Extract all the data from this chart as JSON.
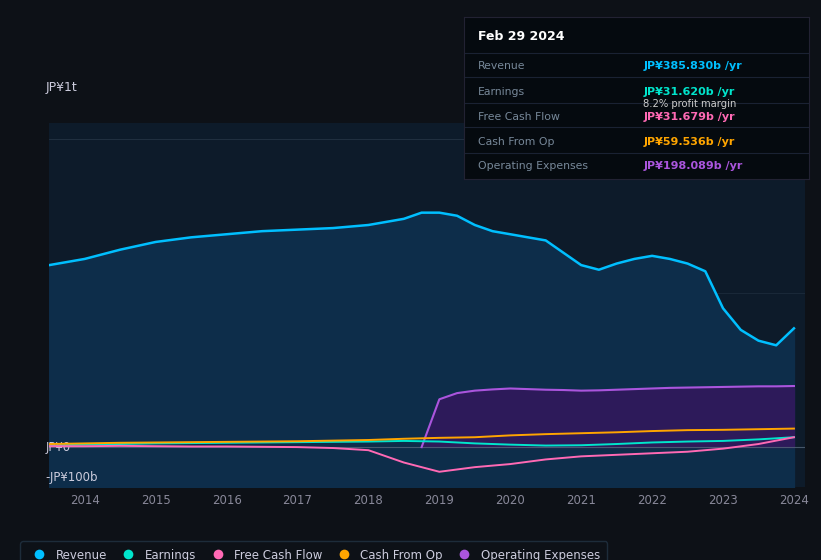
{
  "background_color": "#0d1117",
  "plot_bg_color": "#0d1b2a",
  "ylabel_top": "JP¥1t",
  "ylabel_zero": "JP¥0",
  "ylabel_neg": "-JP¥100b",
  "x_ticks": [
    2014,
    2015,
    2016,
    2017,
    2018,
    2019,
    2020,
    2021,
    2022,
    2023,
    2024
  ],
  "ylim": [
    -130,
    1050
  ],
  "colors": {
    "revenue": "#00bfff",
    "earnings": "#00e5cc",
    "free_cash_flow": "#ff69b4",
    "cash_from_op": "#ffa500",
    "operating_expenses": "#aa55dd",
    "revenue_fill": "#0d2d4a",
    "operating_expenses_fill": "#2d1a5a"
  },
  "info_box": {
    "date": "Feb 29 2024",
    "revenue_label": "Revenue",
    "revenue_value": "JP¥385.830b /yr",
    "earnings_label": "Earnings",
    "earnings_value": "JP¥31.620b /yr",
    "profit_margin": "8.2% profit margin",
    "fcf_label": "Free Cash Flow",
    "fcf_value": "JP¥31.679b /yr",
    "cfop_label": "Cash From Op",
    "cfop_value": "JP¥59.536b /yr",
    "opex_label": "Operating Expenses",
    "opex_value": "JP¥198.089b /yr"
  },
  "legend": [
    {
      "label": "Revenue",
      "color": "#00bfff"
    },
    {
      "label": "Earnings",
      "color": "#00e5cc"
    },
    {
      "label": "Free Cash Flow",
      "color": "#ff69b4"
    },
    {
      "label": "Cash From Op",
      "color": "#ffa500"
    },
    {
      "label": "Operating Expenses",
      "color": "#aa55dd"
    }
  ],
  "revenue": [
    [
      2013.5,
      590
    ],
    [
      2014.0,
      610
    ],
    [
      2014.5,
      640
    ],
    [
      2015.0,
      665
    ],
    [
      2015.5,
      680
    ],
    [
      2016.0,
      690
    ],
    [
      2016.5,
      700
    ],
    [
      2017.0,
      705
    ],
    [
      2017.5,
      710
    ],
    [
      2018.0,
      720
    ],
    [
      2018.5,
      740
    ],
    [
      2018.75,
      760
    ],
    [
      2019.0,
      760
    ],
    [
      2019.25,
      750
    ],
    [
      2019.5,
      720
    ],
    [
      2019.75,
      700
    ],
    [
      2020.0,
      690
    ],
    [
      2020.5,
      670
    ],
    [
      2021.0,
      590
    ],
    [
      2021.25,
      575
    ],
    [
      2021.5,
      595
    ],
    [
      2021.75,
      610
    ],
    [
      2022.0,
      620
    ],
    [
      2022.25,
      610
    ],
    [
      2022.5,
      595
    ],
    [
      2022.75,
      570
    ],
    [
      2023.0,
      450
    ],
    [
      2023.25,
      380
    ],
    [
      2023.5,
      345
    ],
    [
      2023.75,
      330
    ],
    [
      2024.0,
      385
    ]
  ],
  "earnings": [
    [
      2013.5,
      5
    ],
    [
      2014.0,
      8
    ],
    [
      2014.5,
      10
    ],
    [
      2015.0,
      12
    ],
    [
      2015.5,
      13
    ],
    [
      2016.0,
      14
    ],
    [
      2016.5,
      15
    ],
    [
      2017.0,
      16
    ],
    [
      2017.5,
      17
    ],
    [
      2018.0,
      18
    ],
    [
      2018.5,
      20
    ],
    [
      2019.0,
      18
    ],
    [
      2019.5,
      12
    ],
    [
      2020.0,
      8
    ],
    [
      2020.5,
      5
    ],
    [
      2021.0,
      6
    ],
    [
      2021.5,
      10
    ],
    [
      2022.0,
      15
    ],
    [
      2022.5,
      18
    ],
    [
      2023.0,
      20
    ],
    [
      2023.5,
      25
    ],
    [
      2024.0,
      32
    ]
  ],
  "free_cash_flow": [
    [
      2013.5,
      3
    ],
    [
      2014.0,
      3
    ],
    [
      2014.5,
      4
    ],
    [
      2015.0,
      3
    ],
    [
      2015.5,
      2
    ],
    [
      2016.0,
      2
    ],
    [
      2016.5,
      1
    ],
    [
      2017.0,
      0
    ],
    [
      2017.5,
      -3
    ],
    [
      2018.0,
      -10
    ],
    [
      2018.5,
      -50
    ],
    [
      2019.0,
      -80
    ],
    [
      2019.5,
      -65
    ],
    [
      2020.0,
      -55
    ],
    [
      2020.5,
      -40
    ],
    [
      2021.0,
      -30
    ],
    [
      2021.5,
      -25
    ],
    [
      2022.0,
      -20
    ],
    [
      2022.5,
      -15
    ],
    [
      2023.0,
      -5
    ],
    [
      2023.5,
      10
    ],
    [
      2024.0,
      32
    ]
  ],
  "cash_from_op": [
    [
      2013.5,
      10
    ],
    [
      2014.0,
      12
    ],
    [
      2014.5,
      14
    ],
    [
      2015.0,
      15
    ],
    [
      2015.5,
      16
    ],
    [
      2016.0,
      17
    ],
    [
      2016.5,
      18
    ],
    [
      2017.0,
      19
    ],
    [
      2017.5,
      21
    ],
    [
      2018.0,
      23
    ],
    [
      2018.5,
      27
    ],
    [
      2019.0,
      30
    ],
    [
      2019.5,
      32
    ],
    [
      2020.0,
      38
    ],
    [
      2020.5,
      42
    ],
    [
      2021.0,
      45
    ],
    [
      2021.5,
      48
    ],
    [
      2022.0,
      52
    ],
    [
      2022.5,
      55
    ],
    [
      2023.0,
      56
    ],
    [
      2023.5,
      58
    ],
    [
      2024.0,
      60
    ]
  ],
  "operating_expenses": [
    [
      2018.75,
      0
    ],
    [
      2019.0,
      155
    ],
    [
      2019.25,
      175
    ],
    [
      2019.5,
      183
    ],
    [
      2019.75,
      187
    ],
    [
      2020.0,
      190
    ],
    [
      2020.25,
      188
    ],
    [
      2020.5,
      186
    ],
    [
      2020.75,
      185
    ],
    [
      2021.0,
      183
    ],
    [
      2021.25,
      184
    ],
    [
      2021.5,
      186
    ],
    [
      2021.75,
      188
    ],
    [
      2022.0,
      190
    ],
    [
      2022.25,
      192
    ],
    [
      2022.5,
      193
    ],
    [
      2022.75,
      194
    ],
    [
      2023.0,
      195
    ],
    [
      2023.25,
      196
    ],
    [
      2023.5,
      197
    ],
    [
      2023.75,
      197
    ],
    [
      2024.0,
      198
    ]
  ]
}
